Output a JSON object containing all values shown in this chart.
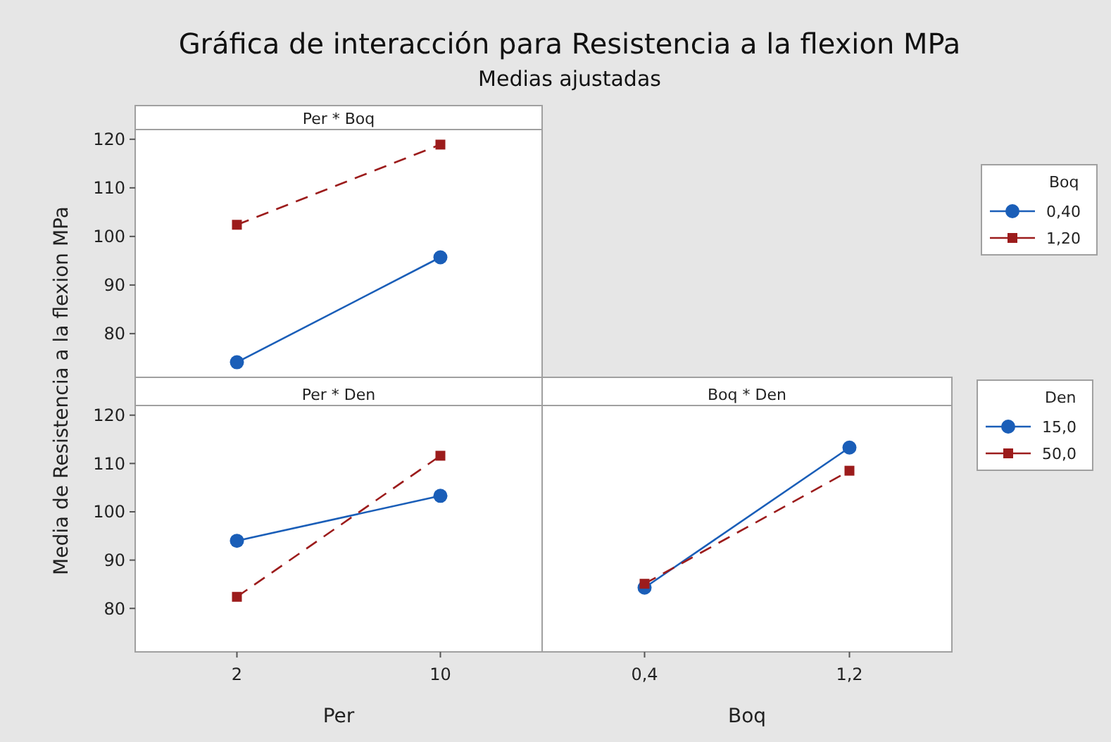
{
  "chart_data": [
    {
      "type": "line",
      "title": "Gráfica de interacción para Resistencia a la flexion MPa",
      "subtitle": "Medias ajustadas",
      "ylabel": "Media de Resistencia a la flexion MPa",
      "annotations": [
        "Per * Boq"
      ],
      "categories": [
        "2",
        "10"
      ],
      "ylim": [
        71,
        122
      ],
      "yticks": [
        80,
        90,
        100,
        110,
        120
      ],
      "tick_labels": "y",
      "legend": "right",
      "legend_title": "Boq",
      "grid": false,
      "series": [
        {
          "name": "0,40",
          "color": "#1a5eb8",
          "values": [
            74.1,
            95.7
          ],
          "marker": "circle",
          "line_style": "solid"
        },
        {
          "name": "1,20",
          "color": "#9c1c1c",
          "values": [
            102.4,
            118.9
          ],
          "marker": "square",
          "line_style": "dashed"
        }
      ]
    },
    {
      "type": "line",
      "xlabel": "Per",
      "annotations": [
        "Per * Den"
      ],
      "categories": [
        "2",
        "10"
      ],
      "ylim": [
        71,
        122
      ],
      "yticks": [
        80,
        90,
        100,
        110,
        120
      ],
      "legend": false,
      "grid": false,
      "series": [
        {
          "color": "#1a5eb8",
          "values": [
            94.0,
            103.3
          ],
          "marker": "circle",
          "line_style": "solid"
        },
        {
          "color": "#9c1c1c",
          "values": [
            82.4,
            111.6
          ],
          "marker": "square",
          "line_style": "dashed"
        }
      ]
    },
    {
      "type": "line",
      "xlabel": "Boq",
      "annotations": [
        "Boq * Den"
      ],
      "categories": [
        "0,4",
        "1,2"
      ],
      "ylim": [
        71,
        122
      ],
      "yticks": [
        80,
        90,
        100,
        110,
        120
      ],
      "tick_labels": "x",
      "legend": "right",
      "legend_title": "Den",
      "grid": false,
      "series": [
        {
          "name": "15,0",
          "color": "#1a5eb8",
          "values": [
            84.3,
            113.3
          ],
          "marker": "circle",
          "line_style": "solid"
        },
        {
          "name": "50,0",
          "color": "#9c1c1c",
          "values": [
            85.1,
            108.5
          ],
          "marker": "square",
          "line_style": "dashed"
        }
      ]
    }
  ]
}
